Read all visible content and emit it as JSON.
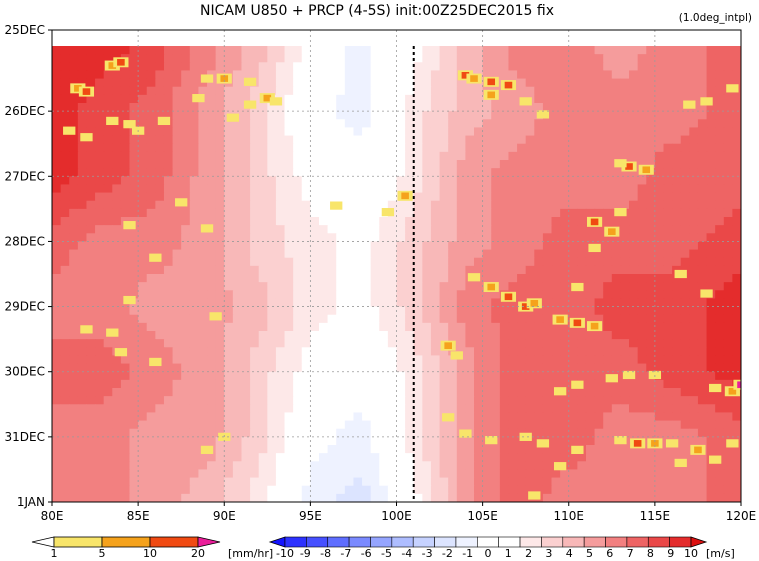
{
  "chart_data": {
    "type": "heatmap",
    "title": "NICAM  U850 + PRCP (4-5S) init:00Z25DEC2015 fix",
    "subtitle": "(1.0deg_intpl)",
    "x_ticks": [
      "80E",
      "85E",
      "90E",
      "95E",
      "100E",
      "105E",
      "110E",
      "115E",
      "120E"
    ],
    "x_range": [
      80,
      120
    ],
    "y_ticks": [
      "25DEC",
      "26DEC",
      "27DEC",
      "28DEC",
      "29DEC",
      "30DEC",
      "31DEC",
      "1JAN"
    ],
    "y_range_days": [
      0,
      7
    ],
    "reference_line_lon": 101,
    "grid": true,
    "prcp_colorbar": {
      "labels": [
        "1",
        "5",
        "10",
        "20"
      ],
      "unit": "[mm/hr]",
      "colors": [
        "#ffffff",
        "#f8e56a",
        "#f5a21c",
        "#f04a12",
        "#ea1e9a"
      ]
    },
    "wind_colorbar": {
      "labels": [
        "-10",
        "-9",
        "-8",
        "-7",
        "-6",
        "-5",
        "-4",
        "-3",
        "-2",
        "-1",
        "0",
        "1",
        "2",
        "3",
        "4",
        "5",
        "6",
        "7",
        "8",
        "9",
        "10"
      ],
      "unit": "[m/s]",
      "colors": [
        "#1414ff",
        "#2d32ff",
        "#4650ff",
        "#5f6eff",
        "#7a8aff",
        "#95a5ff",
        "#aebdff",
        "#c6d2ff",
        "#dce4ff",
        "#eef2ff",
        "#ffffff",
        "#ffffff",
        "#fde8e8",
        "#fbd0d0",
        "#f8b8b8",
        "#f59c9c",
        "#f28080",
        "#ee6464",
        "#ea4848",
        "#e42c2c",
        "#dc1010"
      ]
    },
    "wind_field": {
      "lon": [
        80,
        83,
        86,
        89,
        92,
        95,
        98,
        101,
        104,
        107,
        110,
        113,
        116,
        120
      ],
      "days": [
        0,
        1,
        2,
        3,
        4,
        5,
        6,
        7
      ],
      "u850": [
        [
          9,
          9,
          8,
          6,
          4,
          1,
          -1,
          1,
          4,
          6,
          6,
          5,
          6,
          7
        ],
        [
          9,
          8,
          7,
          5,
          3,
          0,
          -1,
          2,
          4,
          5,
          6,
          6,
          6,
          7
        ],
        [
          9,
          8,
          7,
          5,
          3,
          1,
          0,
          2,
          5,
          6,
          6,
          6,
          7,
          7
        ],
        [
          7,
          6,
          6,
          5,
          3,
          2,
          1,
          3,
          5,
          6,
          7,
          7,
          7,
          8
        ],
        [
          6,
          6,
          5,
          5,
          4,
          2,
          1,
          3,
          6,
          7,
          7,
          8,
          8,
          9
        ],
        [
          7,
          7,
          6,
          5,
          3,
          1,
          0,
          2,
          5,
          7,
          7,
          7,
          8,
          9
        ],
        [
          6,
          6,
          5,
          5,
          3,
          0,
          -1,
          2,
          5,
          7,
          7,
          6,
          6,
          7
        ],
        [
          6,
          6,
          5,
          4,
          2,
          -1,
          -2,
          1,
          5,
          7,
          6,
          6,
          6,
          7
        ]
      ]
    },
    "precip_cells": [
      {
        "lon": 83.5,
        "day": 0.3,
        "mmhr": 5
      },
      {
        "lon": 84.0,
        "day": 0.25,
        "mmhr": 10
      },
      {
        "lon": 81.5,
        "day": 0.65,
        "mmhr": 5
      },
      {
        "lon": 82.0,
        "day": 0.7,
        "mmhr": 10
      },
      {
        "lon": 84.5,
        "day": 1.2,
        "mmhr": 3
      },
      {
        "lon": 83.5,
        "day": 1.15,
        "mmhr": 2
      },
      {
        "lon": 86.5,
        "day": 1.15,
        "mmhr": 3
      },
      {
        "lon": 85.0,
        "day": 1.3,
        "mmhr": 2
      },
      {
        "lon": 81.0,
        "day": 1.3,
        "mmhr": 3
      },
      {
        "lon": 82.0,
        "day": 1.4,
        "mmhr": 2
      },
      {
        "lon": 89.0,
        "day": 0.5,
        "mmhr": 3
      },
      {
        "lon": 90.0,
        "day": 0.5,
        "mmhr": 5
      },
      {
        "lon": 91.5,
        "day": 0.55,
        "mmhr": 4
      },
      {
        "lon": 92.5,
        "day": 0.8,
        "mmhr": 5
      },
      {
        "lon": 93.0,
        "day": 0.85,
        "mmhr": 3
      },
      {
        "lon": 91.5,
        "day": 0.9,
        "mmhr": 2
      },
      {
        "lon": 88.5,
        "day": 0.8,
        "mmhr": 2
      },
      {
        "lon": 90.5,
        "day": 1.1,
        "mmhr": 3
      },
      {
        "lon": 87.5,
        "day": 2.4,
        "mmhr": 2
      },
      {
        "lon": 89.0,
        "day": 2.8,
        "mmhr": 2
      },
      {
        "lon": 84.5,
        "day": 2.75,
        "mmhr": 2
      },
      {
        "lon": 86.0,
        "day": 3.25,
        "mmhr": 2
      },
      {
        "lon": 84.5,
        "day": 3.9,
        "mmhr": 2
      },
      {
        "lon": 89.5,
        "day": 4.15,
        "mmhr": 2
      },
      {
        "lon": 83.5,
        "day": 4.4,
        "mmhr": 2
      },
      {
        "lon": 82.0,
        "day": 4.35,
        "mmhr": 2
      },
      {
        "lon": 84.0,
        "day": 4.7,
        "mmhr": 2
      },
      {
        "lon": 86.0,
        "day": 4.85,
        "mmhr": 2
      },
      {
        "lon": 90.0,
        "day": 6.0,
        "mmhr": 2
      },
      {
        "lon": 89.0,
        "day": 6.2,
        "mmhr": 2
      },
      {
        "lon": 96.5,
        "day": 2.45,
        "mmhr": 4
      },
      {
        "lon": 99.5,
        "day": 2.55,
        "mmhr": 4
      },
      {
        "lon": 100.5,
        "day": 2.3,
        "mmhr": 5
      },
      {
        "lon": 104.0,
        "day": 0.45,
        "mmhr": 10
      },
      {
        "lon": 104.5,
        "day": 0.5,
        "mmhr": 5
      },
      {
        "lon": 105.5,
        "day": 0.55,
        "mmhr": 10
      },
      {
        "lon": 106.5,
        "day": 0.6,
        "mmhr": 10
      },
      {
        "lon": 105.5,
        "day": 0.75,
        "mmhr": 5
      },
      {
        "lon": 107.5,
        "day": 0.85,
        "mmhr": 4
      },
      {
        "lon": 108.5,
        "day": 1.05,
        "mmhr": 3
      },
      {
        "lon": 104.5,
        "day": 3.55,
        "mmhr": 3
      },
      {
        "lon": 105.5,
        "day": 3.7,
        "mmhr": 5
      },
      {
        "lon": 106.5,
        "day": 3.85,
        "mmhr": 10
      },
      {
        "lon": 107.5,
        "day": 4.0,
        "mmhr": 10
      },
      {
        "lon": 108.0,
        "day": 3.95,
        "mmhr": 5
      },
      {
        "lon": 103.0,
        "day": 4.6,
        "mmhr": 5
      },
      {
        "lon": 103.5,
        "day": 4.75,
        "mmhr": 3
      },
      {
        "lon": 109.5,
        "day": 4.2,
        "mmhr": 5
      },
      {
        "lon": 110.5,
        "day": 4.25,
        "mmhr": 10
      },
      {
        "lon": 111.5,
        "day": 4.3,
        "mmhr": 5
      },
      {
        "lon": 110.5,
        "day": 3.7,
        "mmhr": 3
      },
      {
        "lon": 111.5,
        "day": 2.7,
        "mmhr": 10
      },
      {
        "lon": 112.5,
        "day": 2.85,
        "mmhr": 5
      },
      {
        "lon": 113.0,
        "day": 2.55,
        "mmhr": 3
      },
      {
        "lon": 111.5,
        "day": 3.1,
        "mmhr": 3
      },
      {
        "lon": 113.5,
        "day": 1.85,
        "mmhr": 10
      },
      {
        "lon": 114.5,
        "day": 1.9,
        "mmhr": 5
      },
      {
        "lon": 113.0,
        "day": 1.8,
        "mmhr": 3
      },
      {
        "lon": 118.0,
        "day": 0.85,
        "mmhr": 3
      },
      {
        "lon": 119.5,
        "day": 0.65,
        "mmhr": 3
      },
      {
        "lon": 117.0,
        "day": 0.9,
        "mmhr": 2
      },
      {
        "lon": 116.5,
        "day": 3.5,
        "mmhr": 2
      },
      {
        "lon": 118.0,
        "day": 3.8,
        "mmhr": 2
      },
      {
        "lon": 112.5,
        "day": 5.1,
        "mmhr": 3
      },
      {
        "lon": 113.5,
        "day": 5.05,
        "mmhr": 3
      },
      {
        "lon": 115.0,
        "day": 5.05,
        "mmhr": 3
      },
      {
        "lon": 110.5,
        "day": 5.2,
        "mmhr": 2
      },
      {
        "lon": 109.5,
        "day": 5.3,
        "mmhr": 3
      },
      {
        "lon": 118.5,
        "day": 5.25,
        "mmhr": 3
      },
      {
        "lon": 119.5,
        "day": 5.3,
        "mmhr": 5
      },
      {
        "lon": 120.0,
        "day": 5.2,
        "mmhr": 20
      },
      {
        "lon": 103.0,
        "day": 5.7,
        "mmhr": 2
      },
      {
        "lon": 104.0,
        "day": 5.95,
        "mmhr": 2
      },
      {
        "lon": 105.5,
        "day": 6.05,
        "mmhr": 2
      },
      {
        "lon": 107.5,
        "day": 6.0,
        "mmhr": 2
      },
      {
        "lon": 108.5,
        "day": 6.1,
        "mmhr": 3
      },
      {
        "lon": 110.5,
        "day": 6.2,
        "mmhr": 3
      },
      {
        "lon": 113.0,
        "day": 6.05,
        "mmhr": 3
      },
      {
        "lon": 114.0,
        "day": 6.1,
        "mmhr": 10
      },
      {
        "lon": 115.0,
        "day": 6.1,
        "mmhr": 5
      },
      {
        "lon": 116.0,
        "day": 6.1,
        "mmhr": 3
      },
      {
        "lon": 117.5,
        "day": 6.2,
        "mmhr": 5
      },
      {
        "lon": 118.5,
        "day": 6.35,
        "mmhr": 3
      },
      {
        "lon": 119.5,
        "day": 6.1,
        "mmhr": 3
      },
      {
        "lon": 116.5,
        "day": 6.4,
        "mmhr": 2
      },
      {
        "lon": 109.5,
        "day": 6.45,
        "mmhr": 2
      },
      {
        "lon": 108.0,
        "day": 6.9,
        "mmhr": 2
      }
    ]
  }
}
